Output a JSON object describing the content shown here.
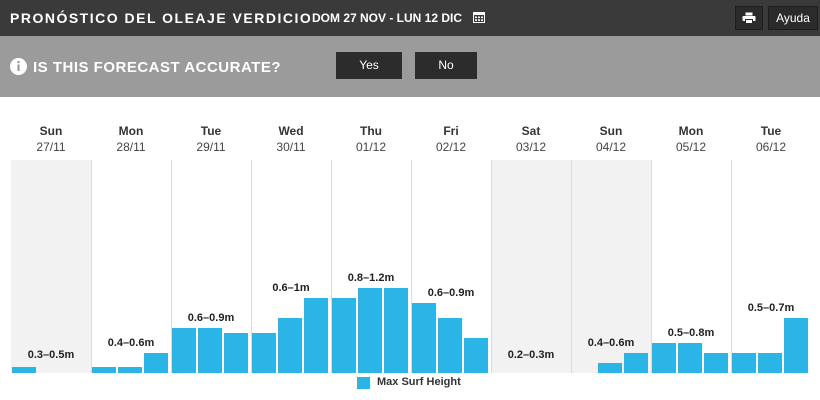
{
  "header": {
    "title": "PRONÓSTICO DEL OLEAJE VERDICIO",
    "date_range": "DOM 27 NOV - LUN 12 DIC",
    "calendar_icon": "calendar-icon",
    "print_icon": "printer-icon",
    "help_label": "Ayuda"
  },
  "feedback": {
    "info_icon": "info-circle-icon",
    "question": "IS THIS FORECAST ACCURATE?",
    "yes_label": "Yes",
    "no_label": "No"
  },
  "colors": {
    "bar": "#2bb5e6",
    "weekend_bg": "#f2f2f2",
    "topbar": "#3a3a3a",
    "feedback_bar": "#9b9b9b",
    "button": "#2c2c2c"
  },
  "chart_data": {
    "type": "bar",
    "title": "",
    "xlabel": "",
    "ylabel": "",
    "ylim": [
      0,
      3
    ],
    "legend": [
      "Max Surf Height"
    ],
    "legend_position": "bottom-center",
    "grid": false,
    "days": [
      {
        "day": "Sun",
        "date": "27/11",
        "range": "0.3–0.5m",
        "weekend": true,
        "values": [
          0.06,
          0.0,
          0.0
        ]
      },
      {
        "day": "Mon",
        "date": "28/11",
        "range": "0.4–0.6m",
        "weekend": false,
        "values": [
          0.06,
          0.06,
          0.2
        ]
      },
      {
        "day": "Tue",
        "date": "29/11",
        "range": "0.6–0.9m",
        "weekend": false,
        "values": [
          0.45,
          0.45,
          0.4
        ]
      },
      {
        "day": "Wed",
        "date": "30/11",
        "range": "0.6–1m",
        "weekend": false,
        "values": [
          0.4,
          0.55,
          0.75
        ]
      },
      {
        "day": "Thu",
        "date": "01/12",
        "range": "0.8–1.2m",
        "weekend": false,
        "values": [
          0.75,
          0.85,
          0.85
        ]
      },
      {
        "day": "Fri",
        "date": "02/12",
        "range": "0.6–0.9m",
        "weekend": false,
        "values": [
          0.7,
          0.55,
          0.35
        ]
      },
      {
        "day": "Sat",
        "date": "03/12",
        "range": "0.2–0.3m",
        "weekend": true,
        "values": [
          0.0,
          0.0,
          0.0
        ]
      },
      {
        "day": "Sun",
        "date": "04/12",
        "range": "0.4–0.6m",
        "weekend": true,
        "values": [
          0.0,
          0.1,
          0.2
        ]
      },
      {
        "day": "Mon",
        "date": "05/12",
        "range": "0.5–0.8m",
        "weekend": false,
        "values": [
          0.3,
          0.3,
          0.2
        ]
      },
      {
        "day": "Tue",
        "date": "06/12",
        "range": "0.5–0.7m",
        "weekend": false,
        "values": [
          0.2,
          0.2,
          0.55
        ]
      }
    ]
  }
}
